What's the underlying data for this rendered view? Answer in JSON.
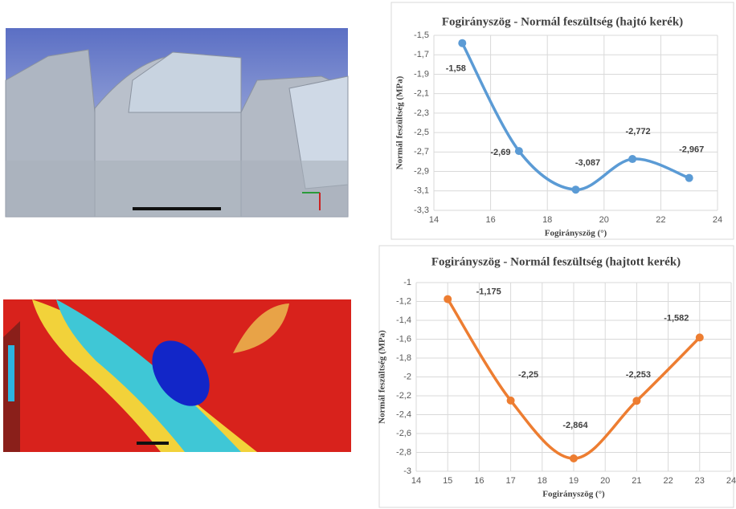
{
  "chart_data": [
    {
      "type": "line",
      "title": "Fogirányszög - Normál feszültség (hajtó kerék)",
      "x_label": "Fogirányszög (°)",
      "y_label": "Normál feszültség (MPa)",
      "x": [
        15,
        17,
        19,
        21,
        23
      ],
      "series": [
        {
          "color": "#5b9bd5",
          "values": [
            -1.58,
            -2.69,
            -3.087,
            -2.772,
            -2.967
          ],
          "value_labels": [
            "-1,58",
            "-2,69",
            "-3,087",
            "-2,772",
            "-2,967"
          ]
        }
      ],
      "xlim": [
        14,
        24
      ],
      "xticks": [
        14,
        16,
        18,
        20,
        22,
        24
      ],
      "ylim": [
        -3.3,
        -1.5
      ],
      "yticks": [
        {
          "value": -1.5,
          "label": "-1,5"
        },
        {
          "value": -1.7,
          "label": "-1,7"
        },
        {
          "value": -1.9,
          "label": "-1,9"
        },
        {
          "value": -2.1,
          "label": "-2,1"
        },
        {
          "value": -2.3,
          "label": "-2,3"
        },
        {
          "value": -2.5,
          "label": "-2,5"
        },
        {
          "value": -2.7,
          "label": "-2,7"
        },
        {
          "value": -2.9,
          "label": "-2,9"
        },
        {
          "value": -3.1,
          "label": "-3,1"
        },
        {
          "value": -3.3,
          "label": "-3,3"
        }
      ],
      "grid": true
    },
    {
      "type": "line",
      "title": "Fogirányszög - Normál feszültség (hajtott kerék)",
      "x_label": "Fogirányszög (°)",
      "y_label": "Normál feszültség (MPa)",
      "x": [
        15,
        17,
        19,
        21,
        23
      ],
      "series": [
        {
          "color": "#ed7d31",
          "values": [
            -1.175,
            -2.25,
            -2.864,
            -2.253,
            -1.582
          ],
          "value_labels": [
            "-1,175",
            "-2,25",
            "-2,864",
            "-2,253",
            "-1,582"
          ]
        }
      ],
      "xlim": [
        14,
        24
      ],
      "xticks": [
        14,
        15,
        16,
        17,
        18,
        19,
        20,
        21,
        22,
        23,
        24
      ],
      "ylim": [
        -3,
        -1
      ],
      "yticks": [
        -1,
        {
          "value": -1.2,
          "label": "-1,2"
        },
        {
          "value": -1.4,
          "label": "-1,4"
        },
        {
          "value": -1.6,
          "label": "-1,6"
        },
        {
          "value": -1.8,
          "label": "-1,8"
        },
        -2,
        {
          "value": -2.2,
          "label": "-2,2"
        },
        {
          "value": -2.4,
          "label": "-2,4"
        },
        {
          "value": -2.6,
          "label": "-2,6"
        },
        {
          "value": -2.8,
          "label": "-2,8"
        },
        -3
      ],
      "grid": true
    }
  ]
}
